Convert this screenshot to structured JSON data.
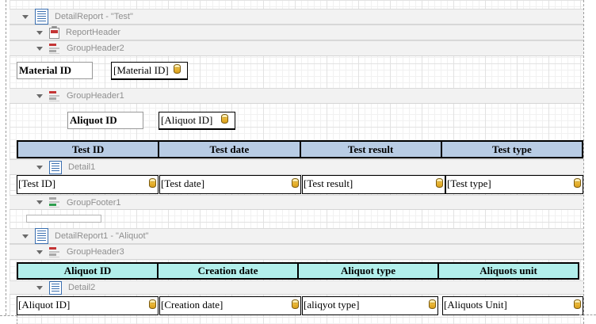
{
  "bands": [
    {
      "label": "DetailReport - \"Test\"",
      "type": "detail-report"
    },
    {
      "label": "ReportHeader",
      "type": "report-header"
    },
    {
      "label": "GroupHeader2",
      "type": "group-header"
    },
    {
      "label": "GroupHeader1",
      "type": "group-header"
    },
    {
      "label": "Detail1",
      "type": "detail"
    },
    {
      "label": "GroupFooter1",
      "type": "group-footer"
    },
    {
      "label": "DetailReport1 - \"Aliquot\"",
      "type": "detail-report"
    },
    {
      "label": "GroupHeader3",
      "type": "group-header"
    },
    {
      "label": "Detail2",
      "type": "detail"
    }
  ],
  "group_header2_area": {
    "label": "Material ID",
    "field": "[Material ID]"
  },
  "group_header1_area": {
    "label": "Aliquot ID",
    "field": "[Aliquot ID]"
  },
  "test_table": {
    "headers": [
      "Test ID",
      "Test date",
      "Test result",
      "Test type"
    ],
    "fields": [
      "[Test ID]",
      "[Test date]",
      "[Test result]",
      "[Test type]"
    ]
  },
  "aliquot_table": {
    "headers": [
      "Aliquot ID",
      "Creation date",
      "Aliquot type",
      "Aliquots unit"
    ],
    "fields": [
      "[Aliquot ID]",
      "[Creation date]",
      "[aliqyot type]",
      "[Aliquots Unit]"
    ]
  },
  "icons": {
    "database_field": "database-icon",
    "collapse": "triangle-collapse-icon"
  },
  "colors": {
    "test_header_bg": "#b8cce4",
    "aliquot_header_bg": "#b2efeb",
    "band_strip_bg": "#f2f2f2",
    "band_text": "#8f8f8f",
    "db_icon_gold": "#e8b430",
    "band_icon_red": "#c43535",
    "band_icon_green": "#2e9e4f",
    "band_icon_blue": "#3a6fb0"
  }
}
